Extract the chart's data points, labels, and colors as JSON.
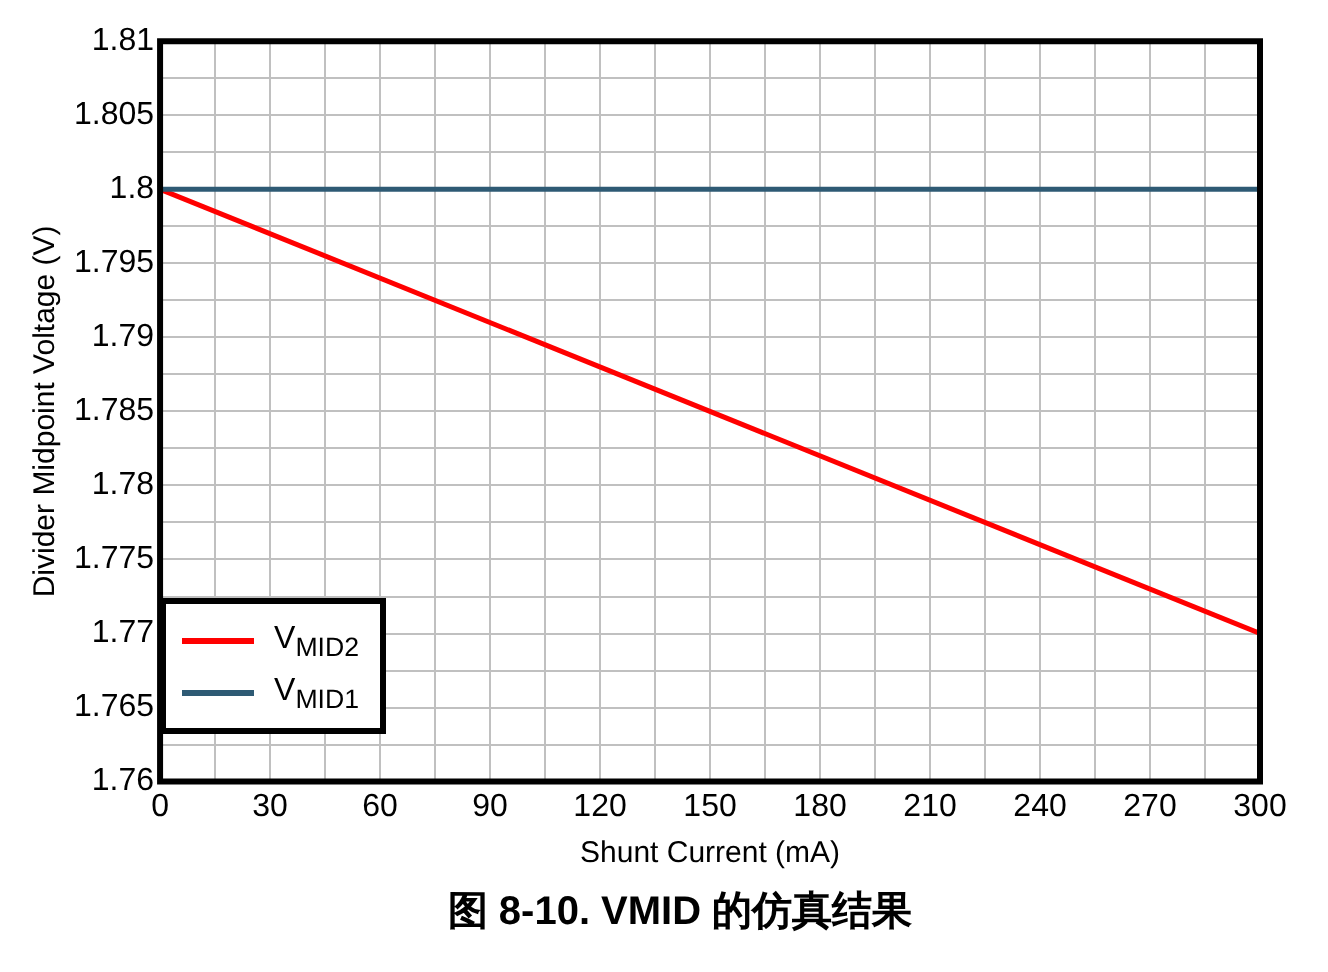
{
  "chart_data": {
    "type": "line",
    "title": "图 8-10. VMID 的仿真结果",
    "xlabel": "Shunt Current (mA)",
    "ylabel": "Divider Midpoint Voltage (V)",
    "x": [
      0,
      300
    ],
    "series": [
      {
        "name": "V$_{MID2}$",
        "color": "#ff0000",
        "values": [
          1.8,
          1.77
        ]
      },
      {
        "name": "V$_{MID1}$",
        "color": "#2e5a74",
        "values": [
          1.8,
          1.8
        ]
      }
    ],
    "xlim": [
      0,
      300
    ],
    "xticks": [
      0,
      {
        "value": 15,
        "label": null
      },
      30,
      {
        "value": 45,
        "label": null
      },
      60,
      {
        "value": 75,
        "label": null
      },
      90,
      {
        "value": 105,
        "label": null
      },
      120,
      {
        "value": 135,
        "label": null
      },
      150,
      {
        "value": 165,
        "label": null
      },
      180,
      {
        "value": 195,
        "label": null
      },
      210,
      {
        "value": 225,
        "label": null
      },
      240,
      {
        "value": 255,
        "label": null
      },
      270,
      {
        "value": 285,
        "label": null
      },
      300
    ],
    "ylim": [
      1.76,
      1.81
    ],
    "yticks": [
      1.76,
      {
        "value": 1.7625,
        "label": null
      },
      1.765,
      {
        "value": 1.7675,
        "label": null
      },
      1.77,
      {
        "value": 1.7725,
        "label": null
      },
      1.775,
      {
        "value": 1.7775,
        "label": null
      },
      1.78,
      {
        "value": 1.7825,
        "label": null
      },
      1.785,
      {
        "value": 1.7875,
        "label": null
      },
      1.79,
      {
        "value": 1.7925,
        "label": null
      },
      1.795,
      {
        "value": 1.7975,
        "label": null
      },
      1.8,
      {
        "value": 1.8025,
        "label": null
      },
      1.805,
      {
        "value": 1.8075,
        "label": null
      },
      1.81
    ],
    "grid": true,
    "legend": "bottom left",
    "marker": "none",
    "line_style": "solid"
  }
}
